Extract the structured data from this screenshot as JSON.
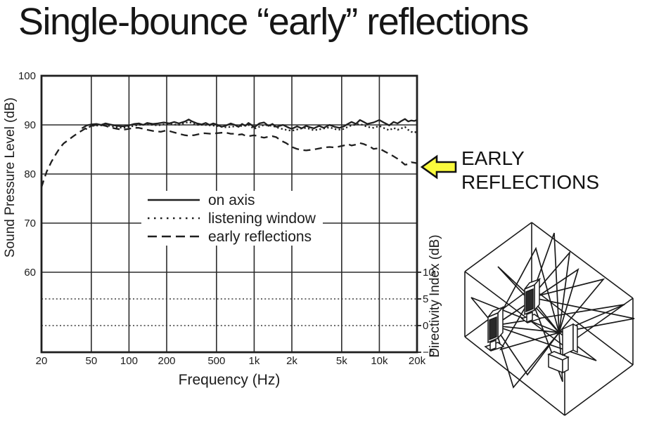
{
  "slide": {
    "title": "Single-bounce “early” reflections"
  },
  "annotation": {
    "line1": "EARLY",
    "line2": "REFLECTIONS",
    "arrow_color": "#fafa3d",
    "arrow_outline": "#111111"
  },
  "chart_data": {
    "type": "line",
    "title": "",
    "xlabel": "Frequency (Hz)",
    "ylabel_left": "Sound Pressure Level (dB)",
    "ylabel_right": "Directivity Index (dB)",
    "x_scale": "log",
    "x_range_hz": [
      20,
      20000
    ],
    "grid": true,
    "x_ticks": [
      {
        "v": 20,
        "label": "20"
      },
      {
        "v": 50,
        "label": "50"
      },
      {
        "v": 100,
        "label": "100"
      },
      {
        "v": 200,
        "label": "200"
      },
      {
        "v": 500,
        "label": "500"
      },
      {
        "v": 1000,
        "label": "1k"
      },
      {
        "v": 2000,
        "label": "2k"
      },
      {
        "v": 5000,
        "label": "5k"
      },
      {
        "v": 10000,
        "label": "10k"
      },
      {
        "v": 20000,
        "label": "20k"
      }
    ],
    "y_left_ticks": [
      100,
      90,
      80,
      70,
      60
    ],
    "y_right_ticks": [
      10,
      5,
      0,
      -5
    ],
    "di_reference_dotted_lines": [
      5,
      0
    ],
    "legend_position": "inside-center",
    "legend": [
      {
        "label": "on axis",
        "style": "solid"
      },
      {
        "label": "listening window",
        "style": "dotted"
      },
      {
        "label": "early reflections",
        "style": "dashed"
      }
    ],
    "series": [
      {
        "name": "on axis",
        "style": "solid",
        "points": [
          [
            42,
            89.3
          ],
          [
            46,
            89.9
          ],
          [
            50,
            90.1
          ],
          [
            55,
            90.2
          ],
          [
            60,
            90.0
          ],
          [
            65,
            90.3
          ],
          [
            70,
            90.1
          ],
          [
            80,
            89.8
          ],
          [
            90,
            89.7
          ],
          [
            100,
            89.9
          ],
          [
            110,
            90.2
          ],
          [
            120,
            90.3
          ],
          [
            130,
            90.0
          ],
          [
            140,
            90.4
          ],
          [
            155,
            90.2
          ],
          [
            170,
            90.3
          ],
          [
            190,
            90.5
          ],
          [
            210,
            90.3
          ],
          [
            230,
            90.6
          ],
          [
            250,
            90.3
          ],
          [
            280,
            90.7
          ],
          [
            300,
            91.1
          ],
          [
            320,
            90.7
          ],
          [
            350,
            90.3
          ],
          [
            380,
            90.1
          ],
          [
            410,
            90.4
          ],
          [
            440,
            90.0
          ],
          [
            470,
            90.3
          ],
          [
            500,
            90.1
          ],
          [
            550,
            89.6
          ],
          [
            600,
            89.9
          ],
          [
            650,
            90.3
          ],
          [
            700,
            90.0
          ],
          [
            750,
            89.6
          ],
          [
            800,
            90.2
          ],
          [
            850,
            89.8
          ],
          [
            900,
            90.4
          ],
          [
            950,
            90.0
          ],
          [
            1000,
            89.5
          ],
          [
            1100,
            90.3
          ],
          [
            1200,
            90.5
          ],
          [
            1300,
            89.8
          ],
          [
            1400,
            90.2
          ],
          [
            1500,
            89.6
          ],
          [
            1700,
            90.0
          ],
          [
            1900,
            89.4
          ],
          [
            2000,
            89.2
          ],
          [
            2200,
            89.7
          ],
          [
            2400,
            89.3
          ],
          [
            2600,
            89.8
          ],
          [
            2800,
            89.5
          ],
          [
            3000,
            89.3
          ],
          [
            3300,
            89.8
          ],
          [
            3600,
            89.4
          ],
          [
            4000,
            90.0
          ],
          [
            4400,
            89.6
          ],
          [
            4800,
            89.4
          ],
          [
            5200,
            89.7
          ],
          [
            5600,
            90.2
          ],
          [
            6000,
            90.6
          ],
          [
            6500,
            90.2
          ],
          [
            7000,
            91.0
          ],
          [
            7500,
            90.6
          ],
          [
            8000,
            90.2
          ],
          [
            9000,
            90.5
          ],
          [
            10000,
            91.0
          ],
          [
            11000,
            90.4
          ],
          [
            12000,
            89.9
          ],
          [
            13000,
            90.6
          ],
          [
            14000,
            90.3
          ],
          [
            15000,
            90.8
          ],
          [
            16000,
            91.2
          ],
          [
            17000,
            90.7
          ],
          [
            18000,
            90.9
          ],
          [
            19000,
            90.8
          ],
          [
            20000,
            91.0
          ]
        ]
      },
      {
        "name": "listening window",
        "style": "dotted",
        "points": [
          [
            45,
            89.1
          ],
          [
            50,
            89.8
          ],
          [
            60,
            89.9
          ],
          [
            70,
            89.8
          ],
          [
            80,
            89.5
          ],
          [
            90,
            89.4
          ],
          [
            100,
            89.6
          ],
          [
            120,
            90.0
          ],
          [
            140,
            90.1
          ],
          [
            170,
            89.9
          ],
          [
            200,
            90.2
          ],
          [
            250,
            90.0
          ],
          [
            300,
            90.6
          ],
          [
            350,
            90.0
          ],
          [
            400,
            90.0
          ],
          [
            500,
            89.8
          ],
          [
            600,
            89.5
          ],
          [
            700,
            89.7
          ],
          [
            800,
            89.8
          ],
          [
            900,
            90.0
          ],
          [
            1000,
            89.2
          ],
          [
            1200,
            90.0
          ],
          [
            1400,
            89.8
          ],
          [
            1600,
            89.3
          ],
          [
            1800,
            89.0
          ],
          [
            2000,
            88.8
          ],
          [
            2300,
            89.2
          ],
          [
            2600,
            89.4
          ],
          [
            3000,
            88.9
          ],
          [
            3500,
            89.2
          ],
          [
            4000,
            89.5
          ],
          [
            4500,
            89.1
          ],
          [
            5000,
            89.0
          ],
          [
            5500,
            89.5
          ],
          [
            6000,
            89.9
          ],
          [
            7000,
            90.2
          ],
          [
            8000,
            89.6
          ],
          [
            9000,
            89.4
          ],
          [
            10000,
            89.8
          ],
          [
            11000,
            89.3
          ],
          [
            12000,
            88.9
          ],
          [
            13000,
            89.4
          ],
          [
            14000,
            89.0
          ],
          [
            15000,
            89.3
          ],
          [
            16000,
            89.6
          ],
          [
            17000,
            89.0
          ],
          [
            18000,
            88.6
          ],
          [
            19000,
            88.4
          ],
          [
            20000,
            88.7
          ]
        ]
      },
      {
        "name": "early reflections",
        "style": "dashed",
        "points": [
          [
            20,
            77.3
          ],
          [
            21,
            79.0
          ],
          [
            22,
            80.5
          ],
          [
            24,
            82.5
          ],
          [
            26,
            84.0
          ],
          [
            28,
            85.3
          ],
          [
            30,
            86.2
          ],
          [
            33,
            87.0
          ],
          [
            36,
            87.7
          ],
          [
            40,
            88.5
          ],
          [
            45,
            89.3
          ],
          [
            50,
            89.8
          ],
          [
            55,
            90.0
          ],
          [
            60,
            90.0
          ],
          [
            65,
            89.8
          ],
          [
            70,
            89.5
          ],
          [
            80,
            89.2
          ],
          [
            90,
            89.0
          ],
          [
            100,
            89.2
          ],
          [
            110,
            89.4
          ],
          [
            120,
            89.4
          ],
          [
            130,
            89.2
          ],
          [
            140,
            89.0
          ],
          [
            160,
            88.7
          ],
          [
            180,
            88.6
          ],
          [
            200,
            88.9
          ],
          [
            220,
            88.6
          ],
          [
            250,
            88.2
          ],
          [
            280,
            87.9
          ],
          [
            300,
            87.8
          ],
          [
            330,
            87.9
          ],
          [
            360,
            88.1
          ],
          [
            400,
            88.3
          ],
          [
            450,
            88.2
          ],
          [
            500,
            88.3
          ],
          [
            550,
            88.4
          ],
          [
            600,
            88.4
          ],
          [
            650,
            88.2
          ],
          [
            700,
            88.2
          ],
          [
            750,
            88.0
          ],
          [
            800,
            88.1
          ],
          [
            850,
            87.8
          ],
          [
            900,
            87.7
          ],
          [
            1000,
            87.9
          ],
          [
            1100,
            87.6
          ],
          [
            1200,
            87.4
          ],
          [
            1300,
            87.6
          ],
          [
            1400,
            87.7
          ],
          [
            1500,
            87.5
          ],
          [
            1600,
            87.0
          ],
          [
            1700,
            86.6
          ],
          [
            1800,
            86.3
          ],
          [
            1900,
            85.9
          ],
          [
            2000,
            85.5
          ],
          [
            2200,
            85.1
          ],
          [
            2400,
            84.9
          ],
          [
            2600,
            84.8
          ],
          [
            2800,
            84.9
          ],
          [
            3000,
            85.0
          ],
          [
            3300,
            85.2
          ],
          [
            3600,
            85.4
          ],
          [
            4000,
            85.5
          ],
          [
            4400,
            85.4
          ],
          [
            4800,
            85.6
          ],
          [
            5200,
            85.8
          ],
          [
            5600,
            86.1
          ],
          [
            6000,
            85.8
          ],
          [
            6500,
            86.0
          ],
          [
            7000,
            86.3
          ],
          [
            7500,
            86.1
          ],
          [
            8000,
            85.8
          ],
          [
            8500,
            85.5
          ],
          [
            9000,
            85.1
          ],
          [
            9500,
            85.2
          ],
          [
            10000,
            85.2
          ],
          [
            11000,
            84.6
          ],
          [
            12000,
            84.1
          ],
          [
            13000,
            83.6
          ],
          [
            14000,
            83.1
          ],
          [
            15000,
            82.5
          ],
          [
            16000,
            81.9
          ],
          [
            17000,
            82.0
          ],
          [
            18000,
            82.4
          ],
          [
            19000,
            82.3
          ],
          [
            20000,
            82.2
          ]
        ]
      }
    ]
  }
}
